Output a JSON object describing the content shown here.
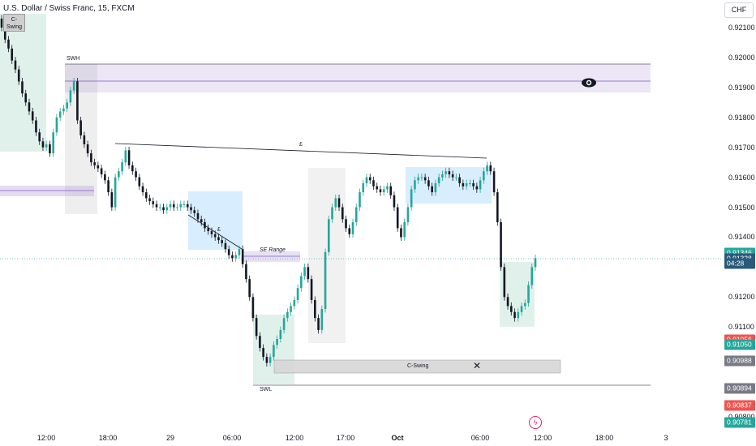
{
  "header": {
    "title": "U.S. Dollar / Swiss Franc, 15, FXCM"
  },
  "currency": "CHF",
  "colors": {
    "up": "#26a69a",
    "down": "#131722",
    "zone_purple": "#b39ddb",
    "zone_blue": "#90caf9",
    "zone_gray": "#9e9e9e",
    "zone_green": "#a5d6c7"
  },
  "price_axis": {
    "ticks": [
      "0.92100",
      "0.92000",
      "0.91900",
      "0.91800",
      "0.91700",
      "0.91600",
      "0.91500",
      "0.91400",
      "0.91200",
      "0.91100",
      "0.90800"
    ],
    "tick_values": [
      0.921,
      0.92,
      0.919,
      0.918,
      0.917,
      0.916,
      0.915,
      0.914,
      0.912,
      0.911,
      0.908
    ]
  },
  "price_tags": [
    {
      "label": "0.91346",
      "value": 0.91346,
      "color": "#26a69a"
    },
    {
      "label": "0.91328",
      "value": 0.91328,
      "color": "#2a5a7a"
    },
    {
      "label": "04:28",
      "value": 0.91311,
      "color": "#2a5a7a"
    },
    {
      "label": "0.91056",
      "value": 0.91056,
      "color": "#ef5350"
    },
    {
      "label": "0.91050",
      "value": 0.9104,
      "color": "#26a69a"
    },
    {
      "label": "0.90988",
      "value": 0.90988,
      "color": "#787b86"
    },
    {
      "label": "0.90894",
      "value": 0.90894,
      "color": "#787b86"
    },
    {
      "label": "0.90837",
      "value": 0.90837,
      "color": "#ef5350"
    },
    {
      "label": "0.90781",
      "value": 0.90781,
      "color": "#26a69a"
    }
  ],
  "time_axis": {
    "labels": [
      "12:00",
      "18:00",
      "29",
      "06:00",
      "12:00",
      "17:00",
      "Oct",
      "06:00",
      "12:00",
      "18:00",
      "3"
    ]
  },
  "annotations": {
    "cswing_top": "C-\nSwing",
    "swh": "SWH",
    "swl": "SWL",
    "se_range": "SE Range",
    "c_swing": "C-Swing",
    "l_top": "£",
    "l_mid": "£"
  },
  "icons": {
    "eye": "eye-icon",
    "cross": "cross-icon",
    "flash": "flash-icon"
  },
  "chart_data": {
    "type": "candlestick",
    "title": "U.S. Dollar / Swiss Franc, 15, FXCM",
    "ylim": [
      0.9076,
      0.9215
    ],
    "y_unit": "CHF",
    "last_price": 0.91328,
    "close": [
      0.921,
      0.9206,
      0.9203,
      0.9199,
      0.9196,
      0.9192,
      0.9188,
      0.9185,
      0.9182,
      0.9179,
      0.9175,
      0.9172,
      0.917,
      0.9171,
      0.9168,
      0.9175,
      0.918,
      0.9182,
      0.9183,
      0.9185,
      0.9189,
      0.9192,
      0.9179,
      0.9174,
      0.9171,
      0.9168,
      0.9165,
      0.9164,
      0.9163,
      0.9161,
      0.9159,
      0.9155,
      0.915,
      0.916,
      0.9162,
      0.9165,
      0.9169,
      0.9164,
      0.9162,
      0.916,
      0.9157,
      0.9155,
      0.9153,
      0.9152,
      0.9151,
      0.915,
      0.915,
      0.9149,
      0.915,
      0.9151,
      0.915,
      0.915,
      0.9151,
      0.9151,
      0.915,
      0.9149,
      0.9148,
      0.9146,
      0.9145,
      0.9143,
      0.9142,
      0.9141,
      0.914,
      0.9139,
      0.9138,
      0.9136,
      0.9134,
      0.9133,
      0.9134,
      0.9136,
      0.9131,
      0.9126,
      0.912,
      0.9113,
      0.9107,
      0.9103,
      0.91,
      0.9098,
      0.91,
      0.9104,
      0.9106,
      0.9109,
      0.9113,
      0.9115,
      0.9117,
      0.9119,
      0.9123,
      0.9127,
      0.913,
      0.9126,
      0.9119,
      0.9113,
      0.9109,
      0.9116,
      0.9135,
      0.9146,
      0.915,
      0.9153,
      0.915,
      0.9146,
      0.9143,
      0.9141,
      0.9145,
      0.915,
      0.9155,
      0.9158,
      0.916,
      0.9159,
      0.9157,
      0.9156,
      0.9155,
      0.9156,
      0.9157,
      0.9154,
      0.915,
      0.9143,
      0.914,
      0.9145,
      0.915,
      0.9156,
      0.9159,
      0.916,
      0.916,
      0.9159,
      0.9157,
      0.9155,
      0.9158,
      0.916,
      0.9161,
      0.9162,
      0.9161,
      0.916,
      0.916,
      0.9158,
      0.9157,
      0.9158,
      0.9158,
      0.9157,
      0.9156,
      0.9159,
      0.9162,
      0.9164,
      0.9162,
      0.9155,
      0.9145,
      0.913,
      0.912,
      0.9117,
      0.9115,
      0.9113,
      0.9115,
      0.9117,
      0.9118,
      0.9124,
      0.913,
      0.9133
    ]
  }
}
